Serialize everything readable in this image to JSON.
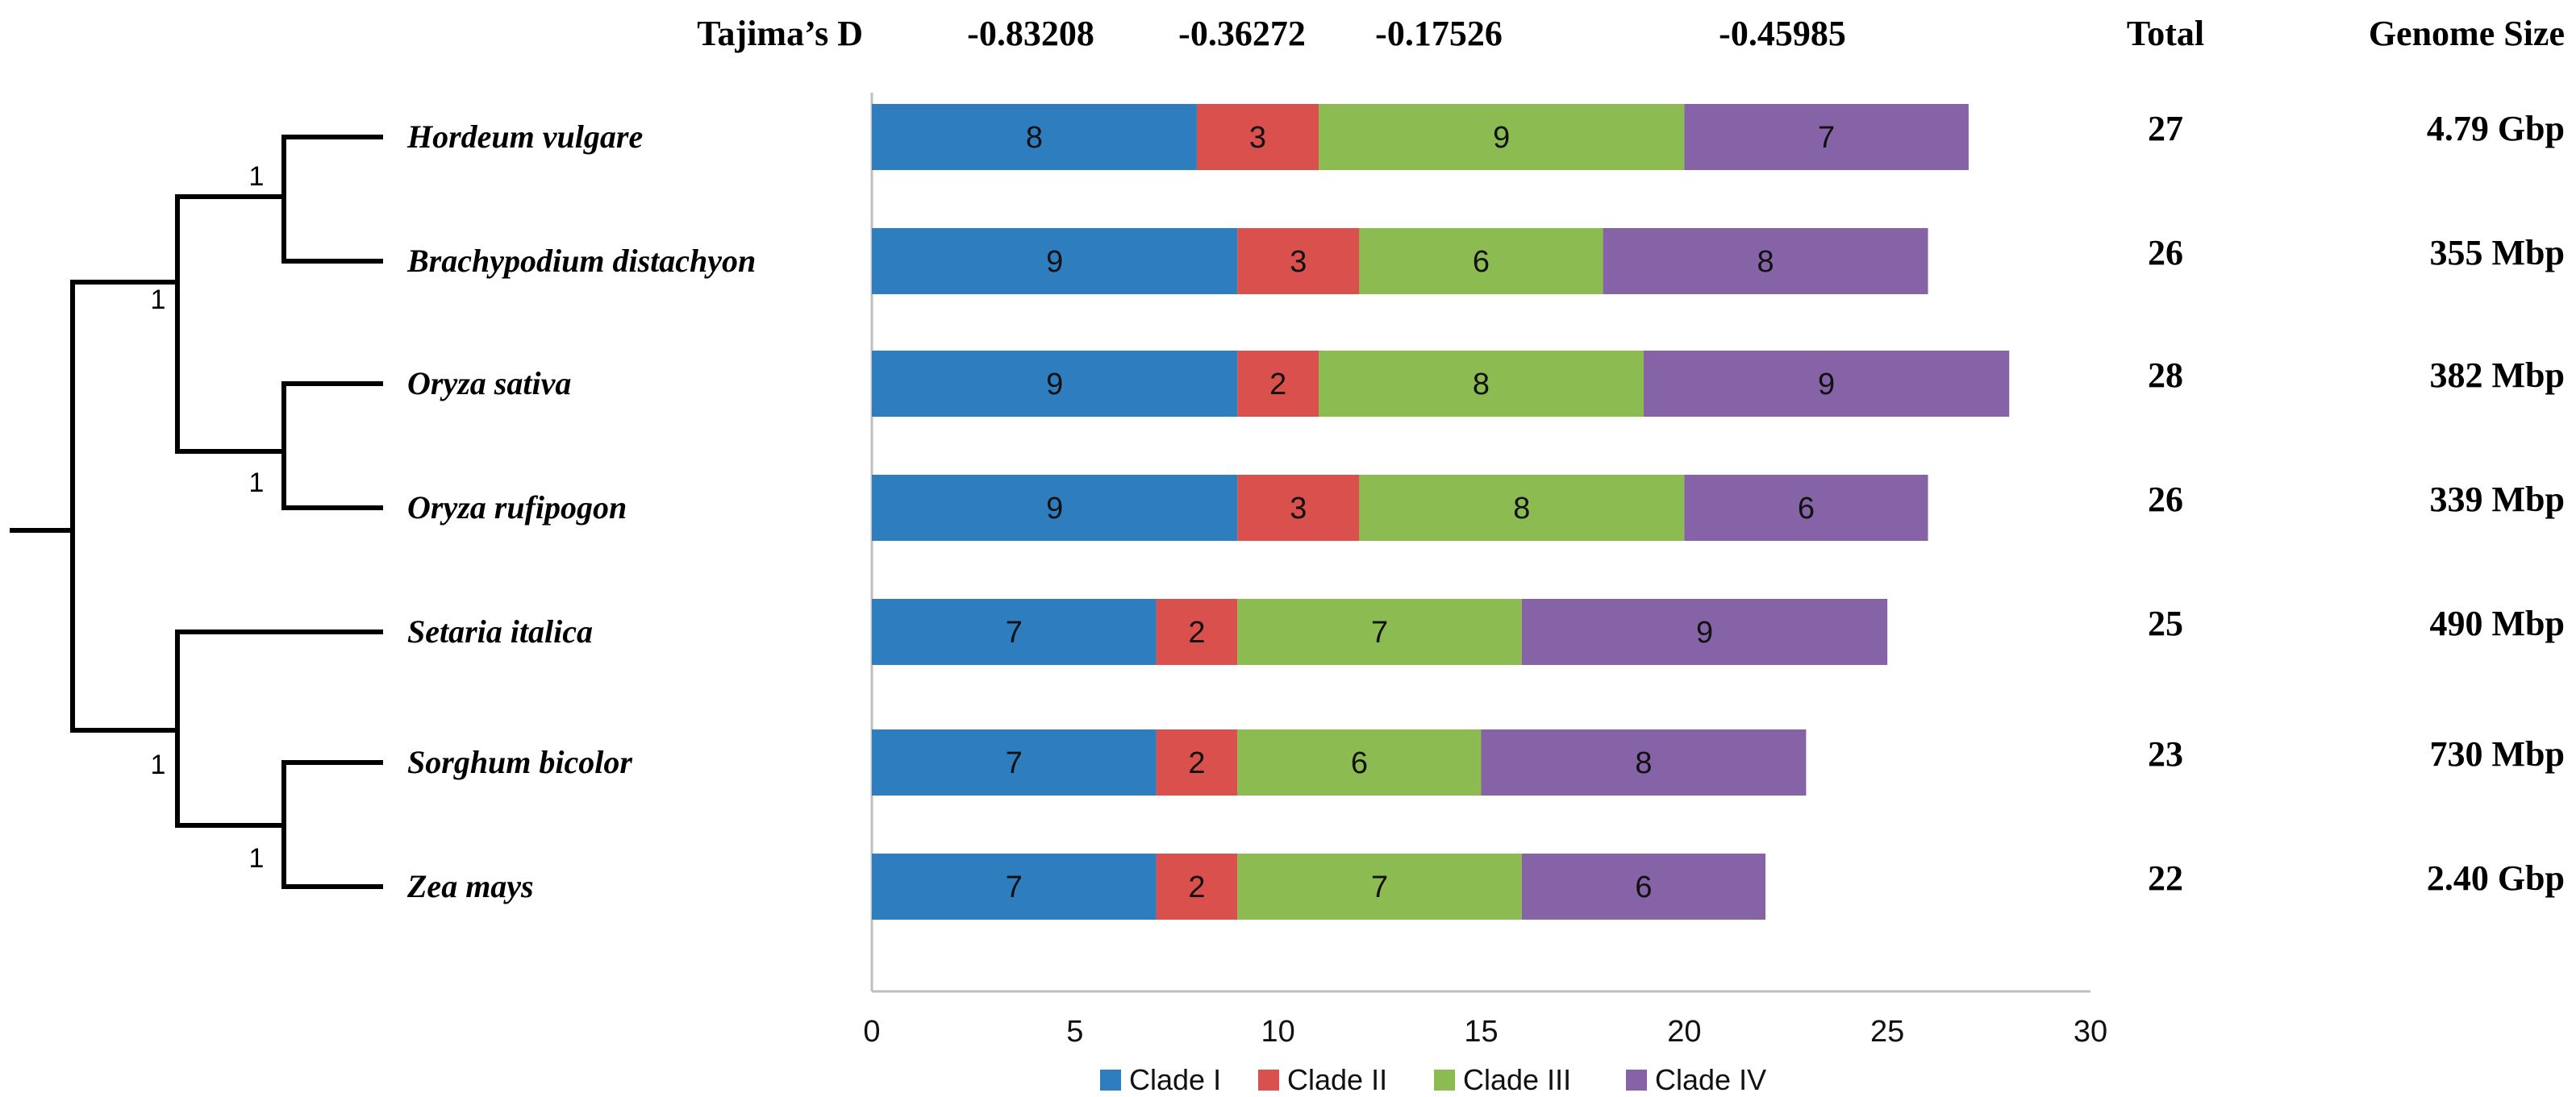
{
  "chart_data": {
    "type": "bar",
    "orientation": "horizontal",
    "stacked": true,
    "categories": [
      "Hordeum vulgare",
      "Brachypodium distachyon",
      "Oryza sativa",
      "Oryza rufipogon",
      "Setaria italica",
      "Sorghum bicolor",
      "Zea mays"
    ],
    "series": [
      {
        "name": "Clade I",
        "color": "#2e7ebf",
        "values": [
          8,
          9,
          9,
          9,
          7,
          7,
          7
        ]
      },
      {
        "name": "Clade II",
        "color": "#d9504c",
        "values": [
          3,
          3,
          2,
          3,
          2,
          2,
          2
        ]
      },
      {
        "name": "Clade III",
        "color": "#8bbb51",
        "values": [
          9,
          6,
          8,
          8,
          7,
          6,
          7
        ]
      },
      {
        "name": "Clade IV",
        "color": "#8663a6",
        "values": [
          7,
          8,
          9,
          6,
          9,
          8,
          6
        ]
      }
    ],
    "xlim": [
      0,
      30
    ],
    "xticks": [
      "0",
      "5",
      "10",
      "15",
      "20",
      "25",
      "30"
    ],
    "tajima": {
      "label": "Tajima’s D",
      "values": [
        "-0.83208",
        "-0.36272",
        "-0.17526",
        "-0.45985"
      ]
    },
    "total": {
      "header": "Total",
      "values": [
        "27",
        "26",
        "28",
        "26",
        "25",
        "23",
        "22"
      ]
    },
    "genome_size": {
      "header": "Genome Size",
      "values": [
        "4.79 Gbp",
        "355 Mbp",
        "382 Mbp",
        "339 Mbp",
        "490 Mbp",
        "730 Mbp",
        "2.40 Gbp"
      ]
    },
    "tree": {
      "bootstrap_labels": [
        "1",
        "1",
        "1",
        "1",
        "1"
      ]
    },
    "legend_position": "bottom"
  }
}
